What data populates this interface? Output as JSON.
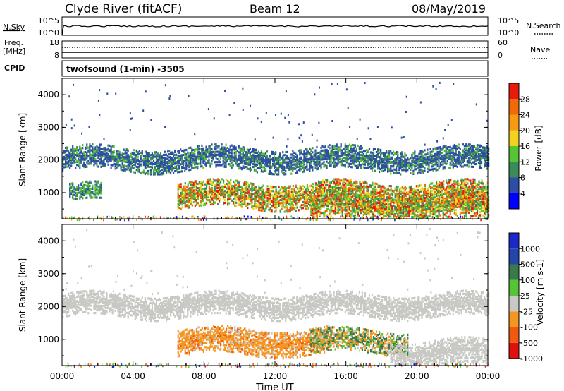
{
  "header": {
    "station": "Clyde River (fitACF)",
    "beam": "Beam 12",
    "date": "08/May/2019"
  },
  "top_panels": {
    "nsky_label": "N.Sky",
    "nsky_ticks": [
      "10^5",
      "10^0"
    ],
    "nsearch_label": "N.Search",
    "freq_label_1": "Freq.",
    "freq_label_2": "[MHz]",
    "freq_ticks": [
      "18",
      "8"
    ],
    "nave_label": "Nave",
    "nave_ticks": [
      "60",
      "0"
    ],
    "cpid_label": "CPID",
    "cpid_text": "twofsound (1-min) -3505"
  },
  "chart_data": [
    {
      "type": "heatmap",
      "quantity": "Power",
      "colorbar_label": "Power [dB]",
      "colorbar_ticks": [
        "4",
        "8",
        "12",
        "16",
        "20",
        "24",
        "28"
      ],
      "colorbar_range": [
        0,
        30
      ],
      "colors": [
        "#0000ff",
        "#2e4ea6",
        "#3c8a5a",
        "#55c435",
        "#f2d21c",
        "#f59a12",
        "#f06a0a",
        "#e81b0b"
      ],
      "ylabel": "Slant Range [km]",
      "yticks": [
        "1000",
        "2000",
        "3000",
        "4000"
      ],
      "ylim": [
        200,
        4500
      ],
      "xlim_hours": [
        0,
        24
      ],
      "echo_bands": [
        {
          "t_start": 0.0,
          "t_end": 24.0,
          "range_center": 2000,
          "range_width": 350,
          "level": "weak"
        },
        {
          "t_start": 0.4,
          "t_end": 2.2,
          "range_center": 950,
          "range_width": 250,
          "level": "moderate"
        },
        {
          "t_start": 6.5,
          "t_end": 24.0,
          "range_center": 900,
          "range_width": 400,
          "level": "strong"
        },
        {
          "t_start": 14.0,
          "t_end": 24.0,
          "range_center": 500,
          "range_width": 350,
          "level": "strong"
        }
      ]
    },
    {
      "type": "heatmap",
      "quantity": "Velocity",
      "colorbar_label": "Velocity [m s-1]",
      "colorbar_ticks": [
        "1000",
        "500",
        "100",
        "25",
        "-25",
        "-100",
        "-500",
        "-1000"
      ],
      "colorbar_range": [
        -1000,
        1000
      ],
      "colors": [
        "#e01010",
        "#f05a10",
        "#f59622",
        "#c8c8c4",
        "#55c435",
        "#3a7a4a",
        "#2446a8",
        "#1a28c8"
      ],
      "ylabel": "Slant Range [km]",
      "yticks": [
        "1000",
        "2000",
        "3000",
        "4000"
      ],
      "ylim": [
        200,
        4500
      ],
      "xlim_hours": [
        0,
        24
      ],
      "echo_bands": [
        {
          "t_start": 0.0,
          "t_end": 24.0,
          "range_center": 2000,
          "range_width": 350,
          "level": "ground"
        },
        {
          "t_start": 6.5,
          "t_end": 15.0,
          "range_center": 900,
          "range_width": 400,
          "level": "receding"
        },
        {
          "t_start": 14.0,
          "t_end": 19.5,
          "range_center": 900,
          "range_width": 350,
          "level": "mixed"
        },
        {
          "t_start": 18.5,
          "t_end": 24.0,
          "range_center": 550,
          "range_width": 400,
          "level": "ground"
        }
      ]
    }
  ],
  "x_axis": {
    "ticks": [
      "00:00",
      "04:00",
      "08:00",
      "12:00",
      "16:00",
      "20:00",
      "00:00"
    ],
    "label": "Time UT"
  }
}
